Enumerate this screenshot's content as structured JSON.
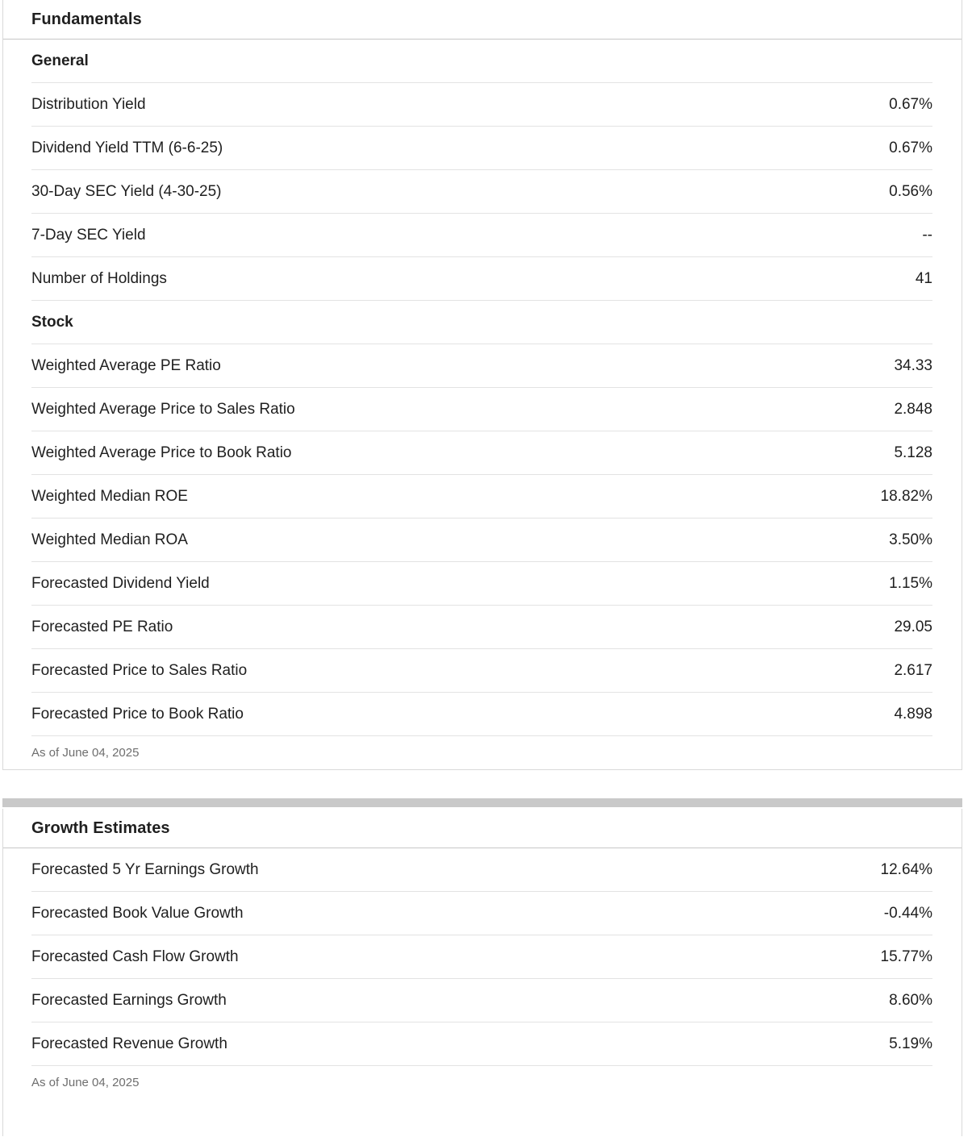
{
  "fundamentals": {
    "title": "Fundamentals",
    "rows": [
      {
        "type": "section",
        "label": "General"
      },
      {
        "label": "Distribution Yield",
        "value": "0.67%"
      },
      {
        "label": "Dividend Yield TTM (6-6-25)",
        "value": "0.67%"
      },
      {
        "label": "30-Day SEC Yield (4-30-25)",
        "value": "0.56%"
      },
      {
        "label": "7-Day SEC Yield",
        "value": "--"
      },
      {
        "label": "Number of Holdings",
        "value": "41"
      },
      {
        "type": "section",
        "label": "Stock"
      },
      {
        "label": "Weighted Average PE Ratio",
        "value": "34.33"
      },
      {
        "label": "Weighted Average Price to Sales Ratio",
        "value": "2.848"
      },
      {
        "label": "Weighted Average Price to Book Ratio",
        "value": "5.128"
      },
      {
        "label": "Weighted Median ROE",
        "value": "18.82%"
      },
      {
        "label": "Weighted Median ROA",
        "value": "3.50%"
      },
      {
        "label": "Forecasted Dividend Yield",
        "value": "1.15%"
      },
      {
        "label": "Forecasted PE Ratio",
        "value": "29.05"
      },
      {
        "label": "Forecasted Price to Sales Ratio",
        "value": "2.617"
      },
      {
        "label": "Forecasted Price to Book Ratio",
        "value": "4.898"
      }
    ],
    "footnote": "As of June 04, 2025"
  },
  "growth": {
    "title": "Growth Estimates",
    "rows": [
      {
        "label": "Forecasted 5 Yr Earnings Growth",
        "value": "12.64%"
      },
      {
        "label": "Forecasted Book Value Growth",
        "value": "-0.44%"
      },
      {
        "label": "Forecasted Cash Flow Growth",
        "value": "15.77%"
      },
      {
        "label": "Forecasted Earnings Growth",
        "value": "8.60%"
      },
      {
        "label": "Forecasted Revenue Growth",
        "value": "5.19%"
      }
    ],
    "footnote": "As of June 04, 2025"
  },
  "colors": {
    "text": "#1f1f1f",
    "footnote_text": "#6e6e6e",
    "row_divider": "#e3e3e3",
    "title_divider": "#c7c7c7",
    "card_border": "#d9d9d9",
    "section_band": "#c9c9c9",
    "background": "#ffffff"
  }
}
